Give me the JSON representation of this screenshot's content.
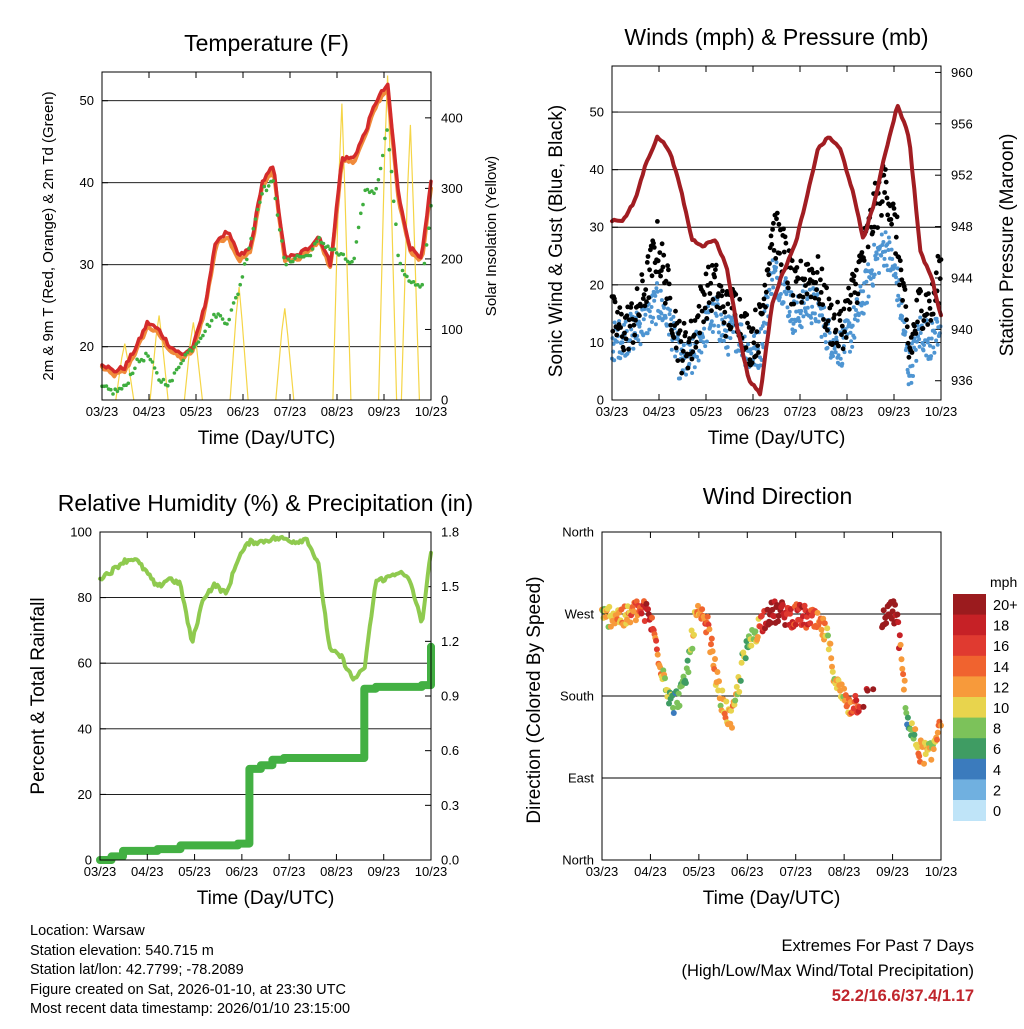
{
  "dates": [
    "03/23",
    "04/23",
    "05/23",
    "06/23",
    "07/23",
    "08/23",
    "09/23",
    "10/23"
  ],
  "colors": {
    "red": "#d42b2b",
    "orange": "#f08a3a",
    "green_td": "#3fae3f",
    "yellow": "#f5d547",
    "blue": "#4e95d2",
    "black": "#000000",
    "maroon": "#a11d22",
    "rh": "#8fca4f",
    "precip": "#43b043"
  },
  "temperature": {
    "title": "Temperature (F)",
    "xlabel": "Time (Day/UTC)",
    "ylabel_left": "2m & 9m T (Red, Orange) & 2m Td (Green)",
    "ylabel_right": "Solar Insolation (Yellow)",
    "yticks_left": [
      "20",
      "30",
      "40",
      "50"
    ],
    "yticks_right": [
      "0",
      "100",
      "200",
      "300",
      "400"
    ]
  },
  "winds": {
    "title": "Winds (mph) & Pressure (mb)",
    "xlabel": "Time (Day/UTC)",
    "ylabel_left": "Sonic Wind & Gust (Blue, Black)",
    "ylabel_right": "Station Pressure (Maroon)",
    "yticks_left": [
      "0",
      "10",
      "20",
      "30",
      "40",
      "50"
    ],
    "yticks_right": [
      "936",
      "940",
      "944",
      "948",
      "952",
      "956",
      "960"
    ]
  },
  "humidity": {
    "title": "Relative Humidity (%) & Precipitation (in)",
    "xlabel": "Time (Day/UTC)",
    "ylabel_left": "Percent & Total Rainfall",
    "yticks_left": [
      "0",
      "20",
      "40",
      "60",
      "80",
      "100"
    ],
    "yticks_right": [
      "0.0",
      "0.3",
      "0.6",
      "0.9",
      "1.2",
      "1.5",
      "1.8"
    ]
  },
  "direction": {
    "title": "Wind Direction",
    "xlabel": "Time (Day/UTC)",
    "ylabel_left": "Direction (Colored By Speed)",
    "yticks_left": [
      "North",
      "East",
      "South",
      "West",
      "North"
    ],
    "legend_title": "mph",
    "legend_labels": [
      "20+",
      "18",
      "16",
      "14",
      "12",
      "10",
      "8",
      "6",
      "4",
      "2",
      "0"
    ],
    "legend_colors": [
      "#9b1b1e",
      "#c62126",
      "#e03a30",
      "#f0632f",
      "#f79a3b",
      "#e8d44d",
      "#7cc25a",
      "#3f9c63",
      "#3b7bbd",
      "#70b0e0",
      "#bfe4f8"
    ]
  },
  "info": {
    "location": "Location: Warsaw",
    "elevation": "Station elevation: 540.715 m",
    "latlon": "Station lat/lon: 42.7799; -78.2089",
    "created": "Figure created on Sat, 2026-01-10, at 23:30 UTC",
    "recent": "Most recent data timestamp: 2026/01/10 23:15:00"
  },
  "extremes": {
    "line1": "Extremes For Past 7 Days",
    "line2": "(High/Low/Max Wind/Total Precipitation)",
    "values": "52.2/16.6/37.4/1.17"
  },
  "chart_data": [
    {
      "type": "line",
      "title": "Temperature (F)",
      "xlabel": "Time (Day/UTC)",
      "ylabel": "2m & 9m T (Red, Orange) & 2m Td (Green)",
      "y2label": "Solar Insolation (Yellow)",
      "ylim": [
        13.5,
        53.5
      ],
      "y2lim": [
        0,
        465
      ],
      "x": [
        0,
        0.25,
        0.5,
        0.75,
        1,
        1.25,
        1.5,
        1.75,
        2,
        2.25,
        2.5,
        2.75,
        3,
        3.25,
        3.5,
        3.75,
        4,
        4.25,
        4.5,
        4.75,
        5,
        5.25,
        5.5,
        5.75,
        6,
        6.25,
        6.5,
        6.75,
        7,
        7.2
      ],
      "series": [
        {
          "name": "2m T",
          "values": [
            18,
            17,
            17.5,
            20,
            23,
            22,
            20,
            19,
            20,
            25,
            33,
            34,
            31,
            32,
            40,
            42,
            31,
            31,
            32,
            33.5,
            30,
            43,
            43,
            46,
            50,
            52,
            38,
            32,
            31,
            40
          ]
        },
        {
          "name": "9m T",
          "values": [
            17.5,
            16.5,
            17,
            19.5,
            22.5,
            21.5,
            19.5,
            18.5,
            19.5,
            24.5,
            32.5,
            33.5,
            30.5,
            31.5,
            39.5,
            41.5,
            30.5,
            30.5,
            31.5,
            33,
            29.5,
            42.5,
            42.5,
            45.5,
            49.5,
            51.5,
            37.5,
            31.5,
            30.5,
            39.5
          ]
        },
        {
          "name": "2m Td",
          "values": [
            15,
            14.5,
            15,
            18,
            19,
            16,
            15.5,
            18.5,
            20,
            22,
            24,
            23,
            27,
            33,
            39,
            40,
            30,
            31,
            31,
            33,
            32,
            31,
            30,
            39,
            39,
            47,
            30,
            28,
            27,
            37
          ]
        },
        {
          "name": "Solar Insolation",
          "values": [
            0,
            0,
            80,
            0,
            0,
            120,
            0,
            0,
            110,
            0,
            0,
            0,
            160,
            0,
            0,
            0,
            130,
            0,
            0,
            0,
            0,
            420,
            0,
            0,
            0,
            460,
            0,
            390,
            0,
            0
          ]
        }
      ]
    },
    {
      "type": "scatter",
      "title": "Winds (mph) & Pressure (mb)",
      "xlabel": "Time (Day/UTC)",
      "ylabel": "Sonic Wind & Gust (Blue, Black)",
      "y2label": "Station Pressure (Maroon)",
      "ylim": [
        0,
        58
      ],
      "y2lim": [
        934.5,
        960.5
      ],
      "x": [
        0,
        0.25,
        0.5,
        0.75,
        1,
        1.25,
        1.5,
        1.75,
        2,
        2.25,
        2.5,
        2.75,
        3,
        3.25,
        3.5,
        3.75,
        4,
        4.25,
        4.5,
        4.75,
        5,
        5.25,
        5.5,
        5.75,
        6,
        6.25,
        6.5,
        6.75,
        7,
        7.2
      ],
      "series": [
        {
          "name": "Sonic Wind",
          "values": [
            10,
            11,
            12,
            14,
            17,
            14,
            6,
            7,
            12,
            15,
            11,
            12,
            8,
            9,
            22,
            20,
            14,
            17,
            16,
            11,
            9,
            12,
            18,
            24,
            27,
            20,
            5,
            12,
            10,
            14
          ]
        },
        {
          "name": "Gust",
          "values": [
            14,
            12,
            14,
            20,
            27,
            18,
            9,
            10,
            18,
            20,
            15,
            16,
            10,
            13,
            30,
            26,
            18,
            22,
            21,
            14,
            12,
            18,
            25,
            33,
            38,
            27,
            8,
            17,
            16,
            23
          ]
        },
        {
          "name": "Station Pressure",
          "values": [
            948.5,
            948.5,
            950,
            953,
            955,
            954,
            951,
            947,
            946.5,
            947,
            945,
            940,
            936,
            935,
            942,
            944.5,
            946.5,
            950,
            954,
            955,
            954,
            951,
            947,
            950,
            954,
            957.5,
            955,
            946,
            944,
            941
          ]
        }
      ]
    },
    {
      "type": "line",
      "title": "Relative Humidity (%) & Precipitation (in)",
      "xlabel": "Time (Day/UTC)",
      "ylabel": "Percent & Total Rainfall",
      "ylim": [
        0,
        100
      ],
      "y2lim": [
        0,
        1.8
      ],
      "x": [
        0,
        0.25,
        0.5,
        0.75,
        1,
        1.25,
        1.5,
        1.75,
        2,
        2.25,
        2.5,
        2.75,
        3,
        3.25,
        3.5,
        3.75,
        4,
        4.25,
        4.5,
        4.75,
        5,
        5.25,
        5.5,
        5.75,
        6,
        6.25,
        6.5,
        6.75,
        7,
        7.2
      ],
      "series": [
        {
          "name": "Relative Humidity",
          "values": [
            86,
            88,
            91,
            92,
            88,
            83,
            86,
            84,
            66,
            80,
            84,
            81,
            92,
            97,
            97,
            98,
            98,
            97,
            98,
            90,
            64,
            62,
            55,
            58,
            85,
            86,
            88,
            85,
            72,
            94
          ]
        },
        {
          "name": "Total Precipitation",
          "values": [
            0,
            0.02,
            0.05,
            0.05,
            0.05,
            0.06,
            0.06,
            0.08,
            0.08,
            0.08,
            0.08,
            0.08,
            0.09,
            0.5,
            0.52,
            0.55,
            0.56,
            0.56,
            0.56,
            0.56,
            0.56,
            0.56,
            0.56,
            0.94,
            0.95,
            0.95,
            0.95,
            0.95,
            0.96,
            1.17
          ]
        }
      ]
    },
    {
      "type": "scatter",
      "title": "Wind Direction",
      "xlabel": "Time (Day/UTC)",
      "ylabel": "Direction (Colored By Speed)",
      "yticks": [
        "North",
        "East",
        "South",
        "West",
        "North"
      ],
      "ylim": [
        0,
        360
      ],
      "legend_title": "mph",
      "x": [
        0,
        0.25,
        0.5,
        0.75,
        1,
        1.25,
        1.5,
        1.75,
        2,
        2.25,
        2.5,
        2.75,
        3,
        3.25,
        3.5,
        3.75,
        4,
        4.25,
        4.5,
        4.75,
        5,
        5.25,
        5.5,
        5.75,
        6,
        6.25,
        6.5,
        6.75,
        7,
        7.2
      ],
      "series": [
        {
          "name": "Direction",
          "values": [
            265,
            270,
            265,
            275,
            270,
            215,
            170,
            190,
            270,
            255,
            180,
            150,
            220,
            250,
            270,
            272,
            268,
            268,
            262,
            250,
            190,
            170,
            175,
            180,
            270,
            272,
            150,
            120,
            115,
            160
          ]
        },
        {
          "name": "Speed",
          "values": [
            10,
            11,
            12,
            15,
            18,
            12,
            6,
            7,
            12,
            14,
            11,
            12,
            8,
            9,
            20,
            20,
            16,
            17,
            16,
            11,
            9,
            12,
            18,
            24,
            25,
            20,
            5,
            12,
            10,
            14
          ]
        }
      ]
    }
  ]
}
